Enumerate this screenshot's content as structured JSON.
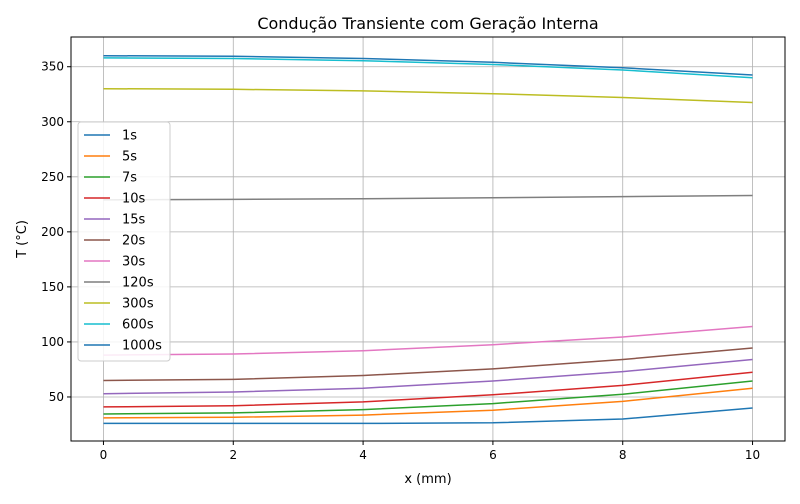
{
  "chart_data": {
    "type": "line",
    "title": "Condução Transiente com Geração Interna",
    "xlabel": "x (mm)",
    "ylabel": "T (°C)",
    "xlim": [
      -0.5,
      10.5
    ],
    "ylim": [
      10,
      377
    ],
    "xticks": [
      0,
      2,
      4,
      6,
      8,
      10
    ],
    "yticks": [
      50,
      100,
      150,
      200,
      250,
      300,
      350
    ],
    "grid": true,
    "legend_position": "upper-left",
    "x": [
      0,
      2,
      4,
      6,
      8,
      10
    ],
    "series": [
      {
        "name": "1s",
        "color": "#1f77b4",
        "values": [
          26,
          26,
          26,
          26.5,
          30,
          40
        ]
      },
      {
        "name": "5s",
        "color": "#ff7f0e",
        "values": [
          31,
          31.5,
          33.5,
          38,
          46,
          58
        ]
      },
      {
        "name": "7s",
        "color": "#2ca02c",
        "values": [
          34.5,
          35.5,
          38.5,
          44,
          52.5,
          64.5
        ]
      },
      {
        "name": "10s",
        "color": "#d62728",
        "values": [
          41,
          42,
          45.5,
          52,
          60.5,
          72.5
        ]
      },
      {
        "name": "15s",
        "color": "#9467bd",
        "values": [
          53,
          54.5,
          58,
          64.5,
          73,
          84
        ]
      },
      {
        "name": "20s",
        "color": "#8c564b",
        "values": [
          65,
          66,
          69.5,
          75.5,
          84,
          94.5
        ]
      },
      {
        "name": "30s",
        "color": "#e377c2",
        "values": [
          88,
          89,
          92,
          97.5,
          104.5,
          114
        ]
      },
      {
        "name": "120s",
        "color": "#7f7f7f",
        "values": [
          229,
          229.5,
          230,
          231,
          232,
          233
        ]
      },
      {
        "name": "300s",
        "color": "#bcbd22",
        "values": [
          330,
          329.5,
          328,
          325.5,
          322,
          317.5
        ]
      },
      {
        "name": "600s",
        "color": "#17becf",
        "values": [
          358,
          357.5,
          355.5,
          352,
          347,
          340
        ]
      },
      {
        "name": "1000s",
        "color": "#1f77b4",
        "values": [
          360,
          359.5,
          357.5,
          354,
          349,
          342.5
        ]
      }
    ]
  }
}
